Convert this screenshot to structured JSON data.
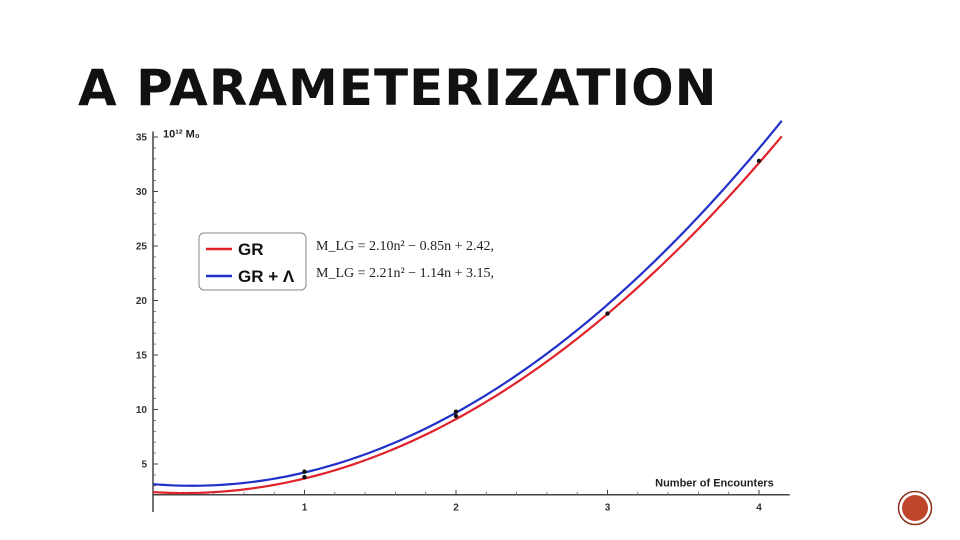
{
  "slide": {
    "title": "A PARAMETERIZATION"
  },
  "chart_data": {
    "type": "line",
    "xlabel": "Number of Encounters",
    "ylabel": "10¹² M₀",
    "xlim": [
      0,
      4.15
    ],
    "ylim": [
      2,
      35.5
    ],
    "x_ticks": [
      1,
      2,
      3,
      4
    ],
    "y_ticks": [
      5,
      10,
      15,
      20,
      25,
      30,
      35
    ],
    "grid": false,
    "legend_position": "upper-left",
    "equations": [
      "M_LG = 2.10n² − 0.85n + 2.42,",
      "M_LG = 2.21n² − 1.14n + 3.15,"
    ],
    "series": [
      {
        "name": "GR",
        "color": "#e0222a",
        "coefficients": [
          2.1,
          -0.85,
          2.42
        ]
      },
      {
        "name": "GR + Λ",
        "color": "#2030c8",
        "coefficients": [
          2.21,
          -1.14,
          3.15
        ]
      }
    ],
    "points": [
      {
        "x": 1,
        "y": 3.8
      },
      {
        "x": 1,
        "y": 4.3
      },
      {
        "x": 2,
        "y": 9.4
      },
      {
        "x": 2,
        "y": 9.8
      },
      {
        "x": 3,
        "y": 18.8
      },
      {
        "x": 4,
        "y": 32.8
      }
    ]
  },
  "colors": {
    "badge_fill": "#c0462b",
    "badge_ring": "#8a2d1a"
  },
  "icons": {
    "page_badge": "circle-badge-icon"
  }
}
